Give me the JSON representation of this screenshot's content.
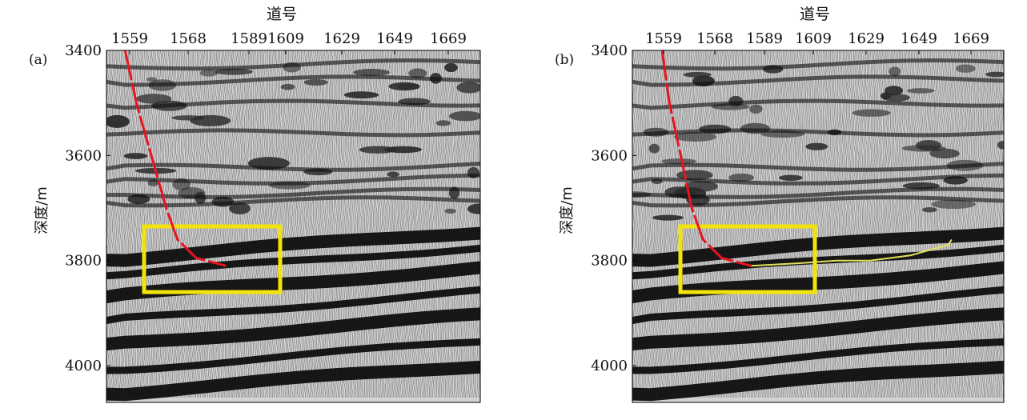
{
  "chart_data": [
    {
      "type": "heatmap",
      "panel_label": "(a)",
      "xlabel": "道号",
      "ylabel": "深度/m",
      "x_ticks": [
        "1559",
        "1568",
        "1589",
        "1609",
        "1629",
        "1649",
        "1669"
      ],
      "y_ticks": [
        3400,
        3600,
        3800,
        4000
      ],
      "ylim": [
        3400,
        4070
      ],
      "grid": false,
      "reflectors_depth_m": [
        3430,
        3460,
        3505,
        3560,
        3625,
        3650,
        3675,
        3690,
        3790,
        3820,
        3860,
        3905,
        3950,
        4000,
        4045
      ],
      "well_trajectory": {
        "color": "#e8141b",
        "points": [
          [
            0.05,
            3400
          ],
          [
            0.08,
            3500
          ],
          [
            0.12,
            3600
          ],
          [
            0.16,
            3700
          ],
          [
            0.19,
            3760
          ],
          [
            0.24,
            3795
          ],
          [
            0.32,
            3810
          ]
        ]
      },
      "highlight_box": {
        "color": "#f2e30b",
        "x_range": [
          0.1,
          0.46
        ],
        "depth_range": [
          3735,
          3860
        ]
      }
    },
    {
      "type": "heatmap",
      "panel_label": "(b)",
      "xlabel": "道号",
      "ylabel": "深度/m",
      "x_ticks": [
        "1559",
        "1568",
        "1589",
        "1609",
        "1629",
        "1649",
        "1669"
      ],
      "y_ticks": [
        3400,
        3600,
        3800,
        4000
      ],
      "ylim": [
        3400,
        4070
      ],
      "grid": false,
      "reflectors_depth_m": [
        3430,
        3460,
        3505,
        3560,
        3625,
        3650,
        3675,
        3690,
        3790,
        3820,
        3860,
        3905,
        3950,
        4000,
        4045
      ],
      "well_trajectory": {
        "color": "#e8141b",
        "points": [
          [
            0.08,
            3400
          ],
          [
            0.1,
            3500
          ],
          [
            0.13,
            3600
          ],
          [
            0.16,
            3700
          ],
          [
            0.19,
            3760
          ],
          [
            0.24,
            3795
          ],
          [
            0.32,
            3810
          ]
        ]
      },
      "horizon_line": {
        "color": "#e3e05a",
        "points": [
          [
            0.32,
            3810
          ],
          [
            0.45,
            3805
          ],
          [
            0.55,
            3800
          ],
          [
            0.64,
            3800
          ],
          [
            0.75,
            3790
          ],
          [
            0.85,
            3770
          ],
          [
            0.86,
            3760
          ]
        ]
      },
      "highlight_box": {
        "color": "#f2e30b",
        "x_range": [
          0.13,
          0.49
        ],
        "depth_range": [
          3735,
          3860
        ]
      }
    }
  ]
}
